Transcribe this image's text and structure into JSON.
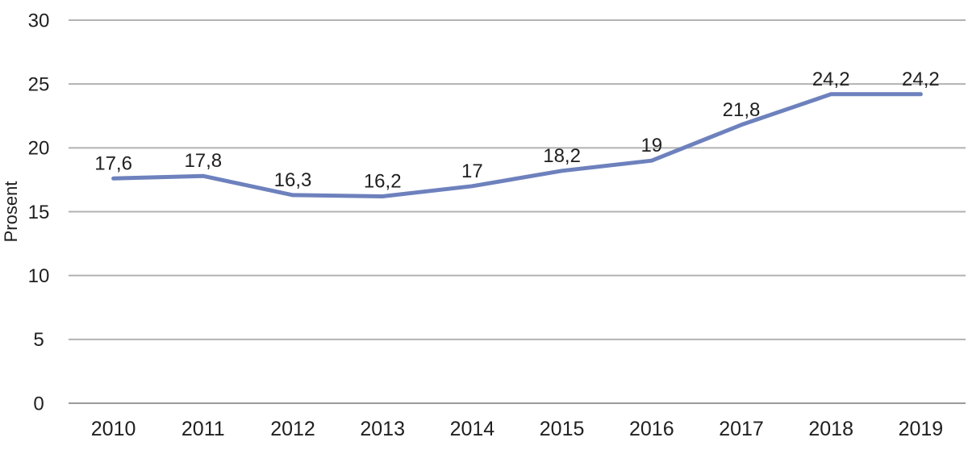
{
  "chart_data": {
    "type": "line",
    "title": "",
    "ylabel": "Prosent",
    "xlabel": "",
    "categories": [
      "2010",
      "2011",
      "2012",
      "2013",
      "2014",
      "2015",
      "2016",
      "2017",
      "2018",
      "2019"
    ],
    "series": [
      {
        "values": [
          17.6,
          17.8,
          16.3,
          16.2,
          17,
          18.2,
          19,
          21.8,
          24.2,
          24.2
        ],
        "labels": [
          "17,6",
          "17,8",
          "16,3",
          "16,2",
          "17",
          "18,2",
          "19",
          "21,8",
          "24,2",
          "24,2"
        ],
        "color": "#6d81bd"
      }
    ],
    "ylim": [
      0,
      30
    ],
    "yticks": [
      0,
      5,
      10,
      15,
      20,
      25,
      30
    ],
    "grid": true,
    "legend_position": "none",
    "colors": {
      "text": "#1f1f1f",
      "gridline": "#b2b2b2",
      "axis_line": "#9b9b9b",
      "background": "#ffffff"
    }
  }
}
